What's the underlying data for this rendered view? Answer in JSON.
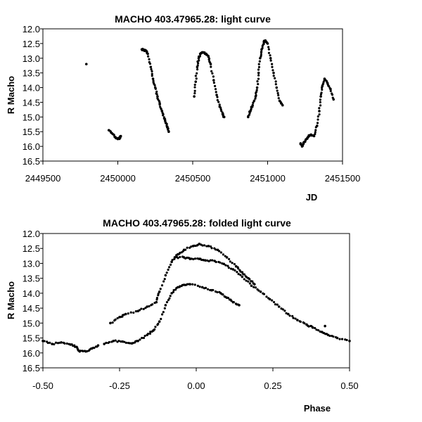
{
  "chart_data": [
    {
      "type": "scatter",
      "title": "MACHO 403.47965.28: light curve",
      "xlabel": "JD",
      "ylabel": "R Macho",
      "xlim": [
        2449500,
        2451500
      ],
      "ylim": [
        12.0,
        16.5
      ],
      "y_inverted": true,
      "grid": false,
      "xticks": [
        2449500,
        2450000,
        2450500,
        2451000,
        2451500
      ],
      "xtick_labels": [
        "2449500",
        "2450000",
        "2450500",
        "2451000",
        "2451500"
      ],
      "yticks": [
        12.0,
        12.5,
        13.0,
        13.5,
        14.0,
        14.5,
        15.0,
        15.5,
        16.0,
        16.5
      ],
      "ytick_labels": [
        "12.0",
        "12.5",
        "13.0",
        "13.5",
        "14.0",
        "14.5",
        "15.0",
        "15.5",
        "16.0",
        "16.5"
      ],
      "segments": [
        [
          [
            2449790,
            13.2
          ]
        ],
        [
          [
            2449940,
            15.45
          ],
          [
            2449960,
            15.55
          ],
          [
            2449980,
            15.68
          ],
          [
            2450000,
            15.75
          ],
          [
            2450010,
            15.72
          ],
          [
            2450020,
            15.65
          ]
        ],
        [
          [
            2450160,
            12.7
          ],
          [
            2450175,
            12.72
          ],
          [
            2450190,
            12.75
          ],
          [
            2450200,
            12.85
          ],
          [
            2450220,
            13.3
          ],
          [
            2450235,
            13.7
          ],
          [
            2450250,
            14.0
          ],
          [
            2450265,
            14.3
          ],
          [
            2450280,
            14.55
          ],
          [
            2450295,
            14.8
          ],
          [
            2450310,
            15.05
          ],
          [
            2450320,
            15.2
          ],
          [
            2450330,
            15.35
          ],
          [
            2450340,
            15.5
          ]
        ],
        [
          [
            2450510,
            14.3
          ],
          [
            2450520,
            13.8
          ],
          [
            2450530,
            13.3
          ],
          [
            2450540,
            13.0
          ],
          [
            2450550,
            12.85
          ],
          [
            2450570,
            12.8
          ],
          [
            2450590,
            12.85
          ],
          [
            2450605,
            12.95
          ],
          [
            2450620,
            13.2
          ],
          [
            2450640,
            13.75
          ],
          [
            2450660,
            14.25
          ],
          [
            2450680,
            14.65
          ],
          [
            2450700,
            14.9
          ],
          [
            2450710,
            15.0
          ]
        ],
        [
          [
            2450870,
            15.0
          ],
          [
            2450885,
            14.8
          ],
          [
            2450900,
            14.6
          ],
          [
            2450920,
            14.3
          ],
          [
            2450930,
            14.0
          ],
          [
            2450940,
            13.5
          ],
          [
            2450950,
            13.0
          ],
          [
            2450960,
            12.7
          ],
          [
            2450975,
            12.45
          ],
          [
            2450985,
            12.4
          ],
          [
            2451000,
            12.5
          ],
          [
            2451020,
            13.0
          ],
          [
            2451040,
            13.5
          ],
          [
            2451060,
            14.0
          ],
          [
            2451080,
            14.45
          ],
          [
            2451100,
            14.6
          ]
        ],
        [
          [
            2451220,
            15.9
          ],
          [
            2451230,
            16.0
          ],
          [
            2451245,
            15.85
          ],
          [
            2451260,
            15.75
          ],
          [
            2451275,
            15.65
          ],
          [
            2451290,
            15.6
          ],
          [
            2451310,
            15.65
          ],
          [
            2451330,
            15.3
          ],
          [
            2451345,
            14.8
          ],
          [
            2451355,
            14.3
          ],
          [
            2451365,
            13.95
          ],
          [
            2451380,
            13.7
          ],
          [
            2451400,
            13.85
          ],
          [
            2451420,
            14.05
          ],
          [
            2451440,
            14.4
          ]
        ]
      ]
    },
    {
      "type": "scatter",
      "title": "MACHO 403.47965.28: folded light curve",
      "xlabel": "Phase",
      "ylabel": "R Macho",
      "xlim": [
        -0.5,
        0.5
      ],
      "ylim": [
        12.0,
        16.5
      ],
      "y_inverted": true,
      "grid": false,
      "xticks": [
        -0.5,
        -0.25,
        0.0,
        0.25,
        0.5
      ],
      "xtick_labels": [
        "-0.50",
        "-0.25",
        "0.00",
        "0.25",
        "0.50"
      ],
      "yticks": [
        12.0,
        12.5,
        13.0,
        13.5,
        14.0,
        14.5,
        15.0,
        15.5,
        16.0,
        16.5
      ],
      "ytick_labels": [
        "12.0",
        "12.5",
        "13.0",
        "13.5",
        "14.0",
        "14.5",
        "15.0",
        "15.5",
        "16.0",
        "16.5"
      ],
      "segments": [
        [
          [
            -0.5,
            15.6
          ],
          [
            -0.47,
            15.7
          ],
          [
            -0.44,
            15.65
          ],
          [
            -0.41,
            15.72
          ],
          [
            -0.39,
            15.8
          ],
          [
            -0.38,
            15.95
          ],
          [
            -0.36,
            15.95
          ],
          [
            -0.34,
            15.85
          ],
          [
            -0.32,
            15.75
          ]
        ],
        [
          [
            -0.3,
            15.7
          ],
          [
            -0.27,
            15.6
          ],
          [
            -0.24,
            15.62
          ],
          [
            -0.21,
            15.68
          ],
          [
            -0.19,
            15.6
          ],
          [
            -0.16,
            15.4
          ],
          [
            -0.14,
            15.25
          ],
          [
            -0.12,
            14.95
          ],
          [
            -0.1,
            14.4
          ],
          [
            -0.08,
            14.0
          ],
          [
            -0.06,
            13.8
          ],
          [
            -0.04,
            13.72
          ],
          [
            -0.02,
            13.7
          ],
          [
            0.02,
            13.8
          ],
          [
            0.05,
            13.9
          ],
          [
            0.08,
            14.0
          ],
          [
            0.1,
            14.15
          ],
          [
            0.12,
            14.3
          ],
          [
            0.14,
            14.4
          ]
        ],
        [
          [
            -0.28,
            15.0
          ],
          [
            -0.25,
            14.8
          ],
          [
            -0.23,
            14.7
          ],
          [
            -0.19,
            14.6
          ],
          [
            -0.16,
            14.45
          ],
          [
            -0.13,
            14.3
          ],
          [
            -0.12,
            13.95
          ],
          [
            -0.1,
            13.4
          ],
          [
            -0.08,
            12.95
          ],
          [
            -0.06,
            12.7
          ],
          [
            -0.04,
            12.55
          ],
          [
            -0.01,
            12.42
          ],
          [
            0.01,
            12.35
          ],
          [
            0.04,
            12.42
          ],
          [
            0.07,
            12.55
          ],
          [
            0.1,
            12.8
          ],
          [
            0.13,
            13.1
          ],
          [
            0.15,
            13.3
          ],
          [
            0.17,
            13.5
          ],
          [
            0.19,
            13.7
          ]
        ],
        [
          [
            -0.07,
            12.8
          ],
          [
            -0.04,
            12.8
          ],
          [
            -0.02,
            12.85
          ],
          [
            0.01,
            12.85
          ],
          [
            0.03,
            12.9
          ],
          [
            0.06,
            12.92
          ],
          [
            0.09,
            13.02
          ],
          [
            0.12,
            13.2
          ],
          [
            0.15,
            13.45
          ],
          [
            0.18,
            13.75
          ],
          [
            0.21,
            13.95
          ],
          [
            0.24,
            14.2
          ],
          [
            0.27,
            14.45
          ],
          [
            0.3,
            14.7
          ],
          [
            0.33,
            14.9
          ],
          [
            0.36,
            15.05
          ],
          [
            0.38,
            15.15
          ],
          [
            0.41,
            15.3
          ],
          [
            0.43,
            15.4
          ],
          [
            0.46,
            15.5
          ],
          [
            0.5,
            15.6
          ]
        ],
        [
          [
            0.42,
            15.1
          ]
        ]
      ]
    }
  ]
}
